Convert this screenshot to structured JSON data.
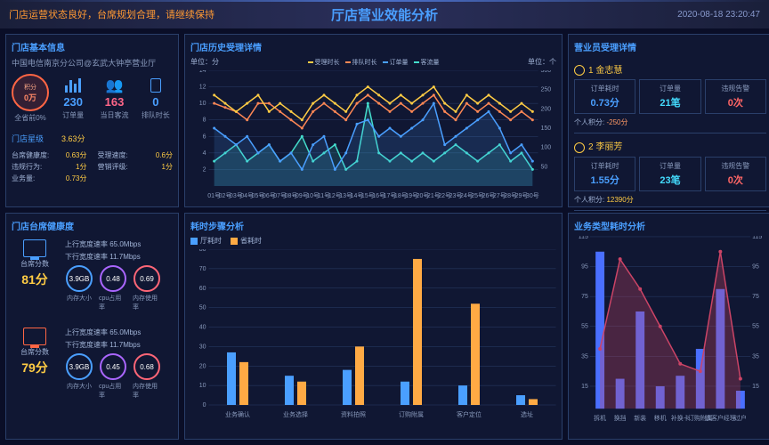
{
  "header": {
    "title": "厅店营业效能分析",
    "subtitle": "门店运营状态良好，台席规划合理，请继续保持",
    "timestamp": "2020-08-18 23:20:47"
  },
  "storeInfo": {
    "title": "门店基本信息",
    "name": "中国电信南京分公司@玄武大钟亭营业厅",
    "scoreLabel": "积分",
    "scoreValue": "0万",
    "scoreSub": "全省前0%",
    "orders": {
      "val": "230",
      "lbl": "订单量"
    },
    "visitors": {
      "val": "163",
      "lbl": "当日客流"
    },
    "queue": {
      "val": "0",
      "lbl": "排队时长"
    },
    "starLabel": "门店星级",
    "starValue": "3.63分",
    "ratings": [
      {
        "lbl": "台席健康度:",
        "val": "0.63分"
      },
      {
        "lbl": "受理速度:",
        "val": "0.6分"
      },
      {
        "lbl": "违规行为:",
        "val": "1分"
      },
      {
        "lbl": "营销评级:",
        "val": "1分"
      },
      {
        "lbl": "业务量:",
        "val": "0.73分"
      }
    ]
  },
  "health": {
    "title": "门店台席健康度",
    "cards": [
      {
        "scoreLbl": "台席分数",
        "score": "81分",
        "up": "上行宽度速率 65.0Mbps",
        "down": "下行宽度速率 11.7Mbps",
        "gauges": [
          {
            "val": "3.9GB",
            "lbl": "内存大小",
            "c": "blue"
          },
          {
            "val": "0.48",
            "lbl": "cpu占用率",
            "c": "purple"
          },
          {
            "val": "0.69",
            "lbl": "内存使用率",
            "c": "red"
          }
        ]
      },
      {
        "scoreLbl": "台席分数",
        "score": "79分",
        "up": "上行宽度速率 65.0Mbps",
        "down": "下行宽度速率 11.7Mbps",
        "gauges": [
          {
            "val": "3.9GB",
            "lbl": "内存大小",
            "c": "blue"
          },
          {
            "val": "0.45",
            "lbl": "cpu占用率",
            "c": "purple"
          },
          {
            "val": "0.68",
            "lbl": "内存使用率",
            "c": "red"
          }
        ]
      }
    ]
  },
  "historyChart": {
    "title": "门店历史受理详情",
    "unitLeft": "单位：分",
    "unitRight": "单位：个",
    "legend": [
      "受理时长",
      "排队时长",
      "订单量",
      "客流量"
    ],
    "legendColors": [
      "#ffcc44",
      "#ff8855",
      "#4a9fff",
      "#44ddcc"
    ],
    "yLeftMax": 14,
    "yLeftTicks": [
      2,
      4,
      6,
      8,
      10,
      12,
      14
    ],
    "yRightMax": 300,
    "yRightTicks": [
      50,
      100,
      150,
      200,
      250,
      300
    ],
    "xLabels": [
      "01号",
      "02号",
      "03号",
      "04号",
      "05号",
      "06号",
      "07号",
      "08号",
      "09号",
      "10号",
      "11号",
      "12号",
      "13号",
      "14号",
      "15号",
      "16号",
      "17号",
      "18号",
      "19号",
      "20号",
      "21号",
      "22号",
      "23号",
      "24号",
      "25号",
      "26号",
      "27号",
      "28号",
      "29号",
      "30号"
    ],
    "series": {
      "handle": [
        11,
        10,
        9,
        10,
        11,
        9,
        10,
        9,
        8,
        10,
        11,
        10,
        9,
        11,
        12,
        11,
        10,
        11,
        10,
        11,
        12,
        10,
        9,
        11,
        10,
        11,
        10,
        9,
        10,
        9
      ],
      "queue": [
        10,
        9.5,
        9,
        8,
        10,
        10,
        9,
        8,
        7,
        9,
        10,
        9,
        8,
        10,
        11,
        10,
        9,
        10,
        9,
        10,
        11,
        9,
        8,
        10,
        9,
        10,
        9,
        8,
        9,
        8
      ],
      "orders": [
        7,
        6,
        5,
        6,
        4,
        5,
        3,
        4,
        2,
        5,
        6,
        2,
        4,
        7.5,
        8,
        6,
        7,
        6,
        7,
        8,
        10,
        5,
        6,
        7,
        8,
        9,
        7,
        4,
        5,
        3
      ],
      "visitors": [
        3,
        4,
        5,
        3,
        4,
        5,
        3,
        4,
        6,
        3,
        4,
        5,
        2,
        3,
        10,
        4,
        3,
        4,
        3,
        4,
        3,
        4,
        5,
        4,
        3,
        4,
        5,
        3,
        4,
        2
      ]
    }
  },
  "timeChart": {
    "title": "耗时步骤分析",
    "legend": [
      {
        "lbl": "厅耗时",
        "color": "#4a9fff"
      },
      {
        "lbl": "省耗时",
        "color": "#ffaa44"
      }
    ],
    "yMax": 80,
    "yTicks": [
      0,
      10,
      20,
      30,
      40,
      50,
      60,
      70,
      80
    ],
    "categories": [
      "业务确认",
      "业务选择",
      "资料拍照",
      "订购附属",
      "客户定位",
      "选址"
    ],
    "hall": [
      27,
      15,
      18,
      12,
      10,
      5
    ],
    "prov": [
      22,
      12,
      30,
      75,
      52,
      3
    ]
  },
  "staff": {
    "title": "营业员受理详情",
    "list": [
      {
        "name": "金志慧",
        "metrics": [
          {
            "lbl": "订单耗时",
            "val": "0.73分",
            "c": "sm-blue"
          },
          {
            "lbl": "订单量",
            "val": "21笔",
            "c": "sm-cyan"
          },
          {
            "lbl": "违规告警",
            "val": "0次",
            "c": "sm-red"
          }
        ],
        "pointsLbl": "个人积分:",
        "points": "-250分",
        "pc": "points-neg"
      },
      {
        "name": "李丽芳",
        "metrics": [
          {
            "lbl": "订单耗时",
            "val": "1.55分",
            "c": "sm-blue"
          },
          {
            "lbl": "订单量",
            "val": "23笔",
            "c": "sm-cyan"
          },
          {
            "lbl": "违规告警",
            "val": "0次",
            "c": "sm-red"
          }
        ],
        "pointsLbl": "个人积分:",
        "points": "12390分",
        "pc": "points-pos"
      }
    ]
  },
  "typeChart": {
    "title": "业务类型耗时分析",
    "yLeftMax": 115,
    "yLeftTicks": [
      15,
      35,
      55,
      75,
      95,
      115
    ],
    "yRightMax": 115,
    "yRightTicks": [
      15,
      35,
      55,
      75,
      95,
      115
    ],
    "categories": [
      "拆机",
      "换挡",
      "新装",
      "移机",
      "补换卡",
      "订购附属",
      "该客户经理",
      "过户"
    ],
    "bars": [
      105,
      20,
      65,
      15,
      22,
      40,
      80,
      12
    ],
    "line": [
      40,
      100,
      80,
      55,
      30,
      25,
      105,
      20
    ],
    "barColor": "#4a6fff",
    "lineColor": "#cc4466",
    "areaColor": "rgba(204,68,102,0.3)"
  }
}
